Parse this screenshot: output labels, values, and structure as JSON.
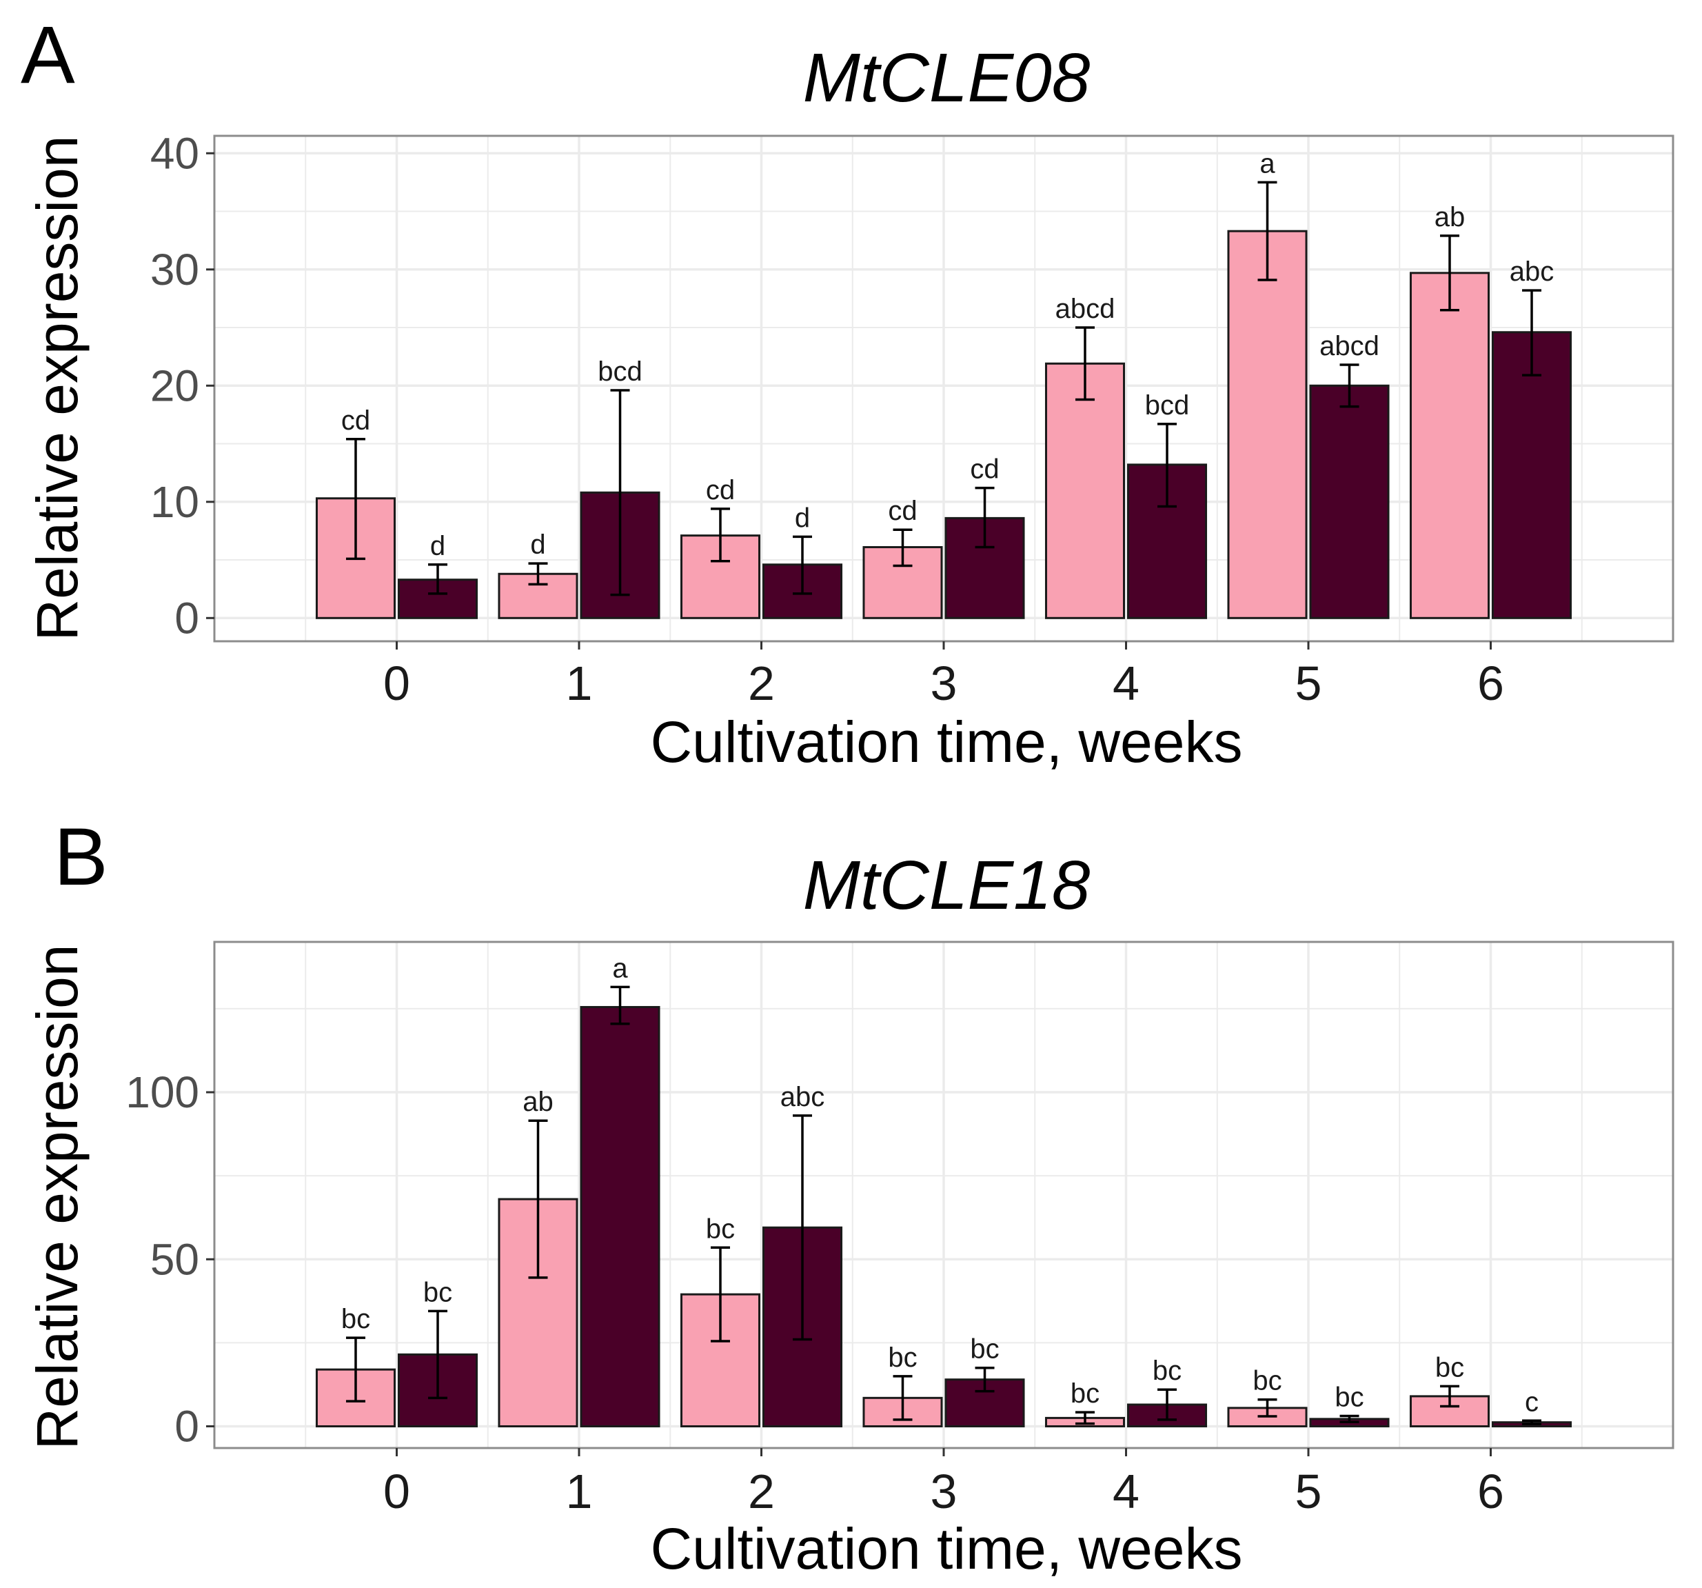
{
  "figure": {
    "colors": {
      "light_bar": "#f9a1b2",
      "dark_bar": "#4a0028",
      "bar_outline": "#1a1a1a",
      "grid": "#ebebeb",
      "panel_border": "#8c8c8c"
    }
  },
  "chart_data": [
    {
      "type": "bar",
      "panel_letter": "A",
      "title": "MtCLE08",
      "xlabel": "Cultivation time, weeks",
      "ylabel": "Relative expression",
      "xlim": [
        -1,
        7
      ],
      "ylim": [
        -2,
        41.5
      ],
      "yticks": [
        0,
        10,
        20,
        30,
        40
      ],
      "ytick_labels": [
        "0",
        "10",
        "20",
        "30",
        "40"
      ],
      "categories": [
        "0",
        "1",
        "2",
        "3",
        "4",
        "5",
        "6"
      ],
      "grid": true,
      "legend": "none",
      "series": [
        {
          "name": "light",
          "color": "#f9a1b2",
          "values": [
            10.3,
            3.8,
            7.1,
            6.1,
            21.9,
            33.3,
            29.7
          ],
          "err_low": [
            5.1,
            2.9,
            4.9,
            4.5,
            18.8,
            29.1,
            26.5
          ],
          "err_high": [
            15.4,
            4.7,
            9.4,
            7.6,
            25.0,
            37.5,
            32.9
          ],
          "letters": [
            "cd",
            "d",
            "cd",
            "cd",
            "abcd",
            "a",
            "ab"
          ]
        },
        {
          "name": "dark",
          "color": "#4a0028",
          "values": [
            3.3,
            10.8,
            4.6,
            8.6,
            13.2,
            20.0,
            24.6
          ],
          "err_low": [
            2.1,
            2.0,
            2.1,
            6.1,
            9.6,
            18.2,
            20.9
          ],
          "err_high": [
            4.6,
            19.6,
            7.0,
            11.2,
            16.7,
            21.8,
            28.2
          ],
          "letters": [
            "d",
            "bcd",
            "d",
            "cd",
            "bcd",
            "abcd",
            "abc"
          ]
        }
      ]
    },
    {
      "type": "bar",
      "panel_letter": "B",
      "title": "MtCLE18",
      "xlabel": "Cultivation time, weeks",
      "ylabel": "Relative expression",
      "xlim": [
        -1,
        7
      ],
      "ylim": [
        -6.5,
        145
      ],
      "yticks": [
        0,
        50,
        100
      ],
      "ytick_labels": [
        "0",
        "50",
        "100"
      ],
      "categories": [
        "0",
        "1",
        "2",
        "3",
        "4",
        "5",
        "6"
      ],
      "grid": true,
      "legend": "none",
      "series": [
        {
          "name": "light",
          "color": "#f9a1b2",
          "values": [
            17.0,
            68.0,
            39.5,
            8.5,
            2.5,
            5.5,
            9.0
          ],
          "err_low": [
            7.5,
            44.5,
            25.5,
            2.0,
            0.8,
            3.0,
            6.0
          ],
          "err_high": [
            26.5,
            91.5,
            53.5,
            15.0,
            4.2,
            8.0,
            12.0
          ],
          "letters": [
            "bc",
            "ab",
            "bc",
            "bc",
            "bc",
            "bc",
            "bc"
          ]
        },
        {
          "name": "dark",
          "color": "#4a0028",
          "values": [
            21.5,
            125.5,
            59.5,
            14.0,
            6.5,
            2.2,
            1.2
          ],
          "err_low": [
            8.5,
            120.5,
            26.0,
            10.5,
            2.0,
            1.3,
            0.7
          ],
          "err_high": [
            34.5,
            131.5,
            93.0,
            17.5,
            11.0,
            3.1,
            1.7
          ],
          "letters": [
            "bc",
            "a",
            "abc",
            "bc",
            "bc",
            "bc",
            "c"
          ]
        }
      ]
    }
  ]
}
